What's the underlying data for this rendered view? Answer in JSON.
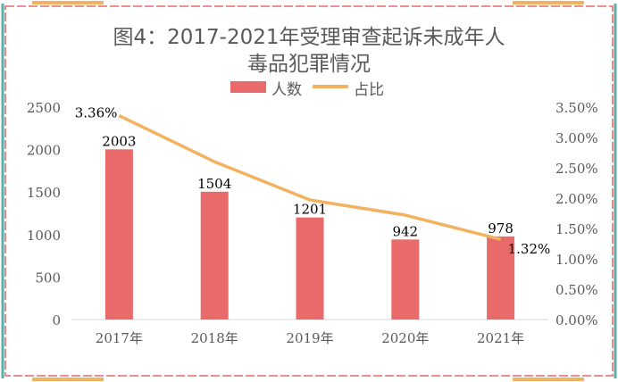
{
  "chart_data": {
    "type": "bar",
    "title": "图4：2017-2021年受理审查起诉未成年人毒品犯罪情况",
    "title_lines": [
      "图4：2017-2021年受理审查起诉未成年人",
      "毒品犯罪情况"
    ],
    "categories": [
      "2017年",
      "2018年",
      "2019年",
      "2020年",
      "2021年"
    ],
    "series": [
      {
        "name": "人数",
        "kind": "bar",
        "axis": "left",
        "values": [
          2003,
          1504,
          1201,
          942,
          978
        ],
        "color": "#E96A6A"
      },
      {
        "name": "占比",
        "kind": "line",
        "axis": "right",
        "values": [
          3.36,
          2.6,
          1.97,
          1.72,
          1.32
        ],
        "color": "#F2B25F"
      }
    ],
    "data_labels": {
      "bars": [
        "2003",
        "1504",
        "1201",
        "942",
        "978"
      ],
      "line": [
        {
          "index": 0,
          "text": "3.36%"
        },
        {
          "index": 4,
          "text": "1.32%"
        }
      ]
    },
    "y_left": {
      "ylim": [
        0,
        2500
      ],
      "ticks": [
        "0",
        "500",
        "1000",
        "1500",
        "2000",
        "2500"
      ]
    },
    "y_right": {
      "ylim": [
        0,
        3.5
      ],
      "ticks": [
        "0.00%",
        "0.50%",
        "1.00%",
        "1.50%",
        "2.00%",
        "2.50%",
        "3.00%",
        "3.50%"
      ]
    },
    "legend_position": "top",
    "grid": false,
    "frame_colors": {
      "border": "#E96A6A",
      "accent_left": "#5BAFA8",
      "accent_top": "#F2B25F"
    }
  }
}
